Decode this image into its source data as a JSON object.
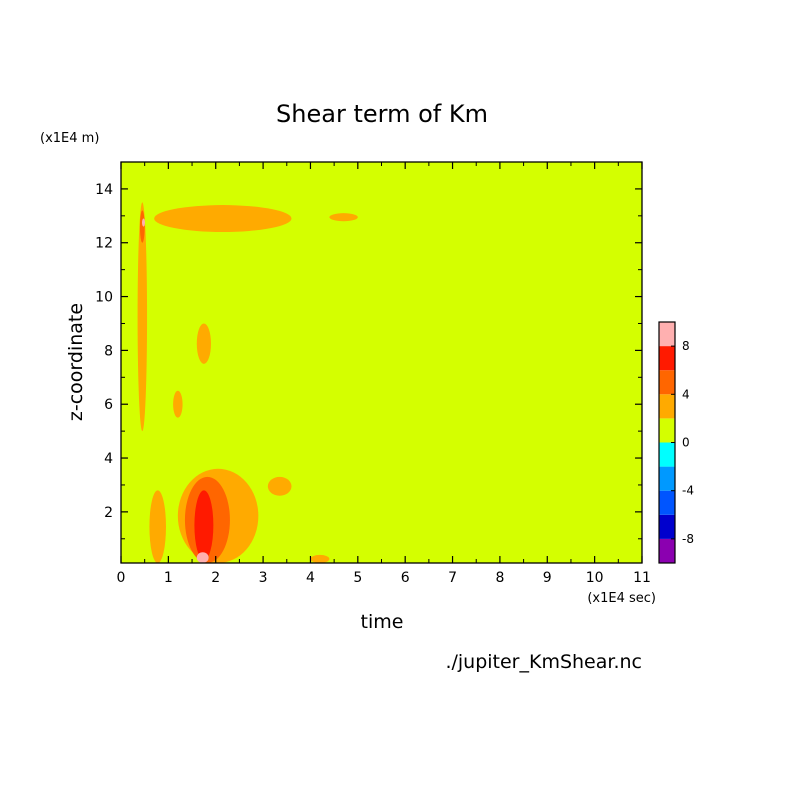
{
  "chart_data": {
    "type": "heatmap",
    "title": "Shear term of Km",
    "xlabel": "time",
    "ylabel": "z-coordinate",
    "x_unit": "(x1E4 sec)",
    "y_unit": "(x1E4 m)",
    "source_file": "./jupiter_KmShear.nc",
    "xlim": [
      0,
      11
    ],
    "ylim": [
      0.1,
      15
    ],
    "x_ticks": [
      "0",
      "1",
      "2",
      "3",
      "4",
      "5",
      "6",
      "7",
      "8",
      "9",
      "10",
      "11"
    ],
    "y_ticks": [
      "2",
      "4",
      "6",
      "8",
      "10",
      "12",
      "14"
    ],
    "background_level": "0 to 2",
    "colorbar": {
      "levels": [
        -10,
        -8,
        -6,
        -4,
        -2,
        0,
        2,
        4,
        6,
        8,
        10
      ],
      "labels": [
        "8",
        "4",
        "0",
        "-4",
        "-8"
      ],
      "colors": [
        "#8b00b0",
        "#0000cd",
        "#0055ff",
        "#0099ff",
        "#00ffff",
        "#d4ff00",
        "#ffaa00",
        "#ff6600",
        "#ff1a00",
        "#ffb0b0"
      ]
    },
    "regions": [
      {
        "level": "2 to 4",
        "x": [
          0.35,
          0.55
        ],
        "y": [
          5.0,
          13.5
        ]
      },
      {
        "level": "4 to 6",
        "x": [
          0.4,
          0.5
        ],
        "y": [
          12.0,
          13.2
        ]
      },
      {
        "level": "8 to 10",
        "x": [
          0.45,
          0.5
        ],
        "y": [
          12.6,
          12.9
        ]
      },
      {
        "level": "2 to 4",
        "x": [
          0.7,
          3.6
        ],
        "y": [
          12.4,
          13.4
        ]
      },
      {
        "level": "2 to 4",
        "x": [
          4.4,
          5.0
        ],
        "y": [
          12.8,
          13.1
        ]
      },
      {
        "level": "2 to 4",
        "x": [
          0.6,
          0.95
        ],
        "y": [
          0.1,
          2.8
        ]
      },
      {
        "level": "2 to 4",
        "x": [
          1.2,
          2.9
        ],
        "y": [
          0.1,
          3.6
        ]
      },
      {
        "level": "4 to 6",
        "x": [
          1.35,
          2.3
        ],
        "y": [
          0.1,
          3.3
        ]
      },
      {
        "level": "6 to 8",
        "x": [
          1.55,
          1.95
        ],
        "y": [
          0.2,
          2.8
        ]
      },
      {
        "level": "8 to 10",
        "x": [
          1.6,
          1.85
        ],
        "y": [
          0.1,
          0.5
        ]
      },
      {
        "level": "2 to 4",
        "x": [
          3.1,
          3.6
        ],
        "y": [
          2.6,
          3.3
        ]
      },
      {
        "level": "2 to 4",
        "x": [
          4.0,
          4.4
        ],
        "y": [
          0.1,
          0.4
        ]
      },
      {
        "level": "2 to 4",
        "x": [
          1.6,
          1.9
        ],
        "y": [
          7.5,
          9.0
        ]
      },
      {
        "level": "2 to 4",
        "x": [
          1.1,
          1.3
        ],
        "y": [
          5.5,
          6.5
        ]
      }
    ],
    "grid": false,
    "legend": "colorbar-right"
  }
}
